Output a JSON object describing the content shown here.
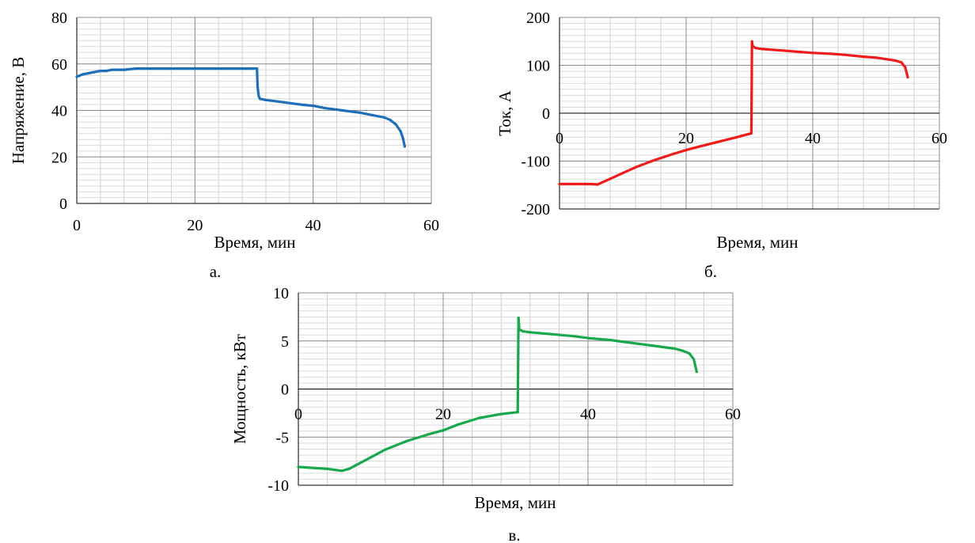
{
  "chart_data": [
    {
      "type": "line",
      "title": "",
      "xlabel": "Время, мин",
      "ylabel": "Напряжение, В",
      "caption": "а.",
      "xlim": [
        0,
        60
      ],
      "ylim": [
        0,
        80
      ],
      "x_ticks": [
        "0",
        "20",
        "40",
        "60"
      ],
      "y_ticks": [
        "0",
        "20",
        "40",
        "60",
        "80"
      ],
      "grid": true,
      "series": [
        {
          "color": "#1f6fb8",
          "x": [
            0,
            1,
            2,
            3,
            4,
            5,
            6,
            8,
            10,
            12,
            15,
            18,
            20,
            22,
            25,
            28,
            30.5,
            30.6,
            30.8,
            31,
            32,
            35,
            38,
            40,
            42,
            45,
            48,
            50,
            52,
            53,
            54,
            54.8,
            55.2,
            55.5
          ],
          "y": [
            54.5,
            55.5,
            56,
            56.5,
            57,
            57,
            57.5,
            57.5,
            58,
            58,
            58,
            58,
            58,
            58,
            58,
            58,
            58,
            50,
            46,
            45,
            44.5,
            43.5,
            42.5,
            42,
            41,
            40,
            39,
            38,
            37,
            36,
            34,
            31,
            28,
            24.5
          ]
        }
      ]
    },
    {
      "type": "line",
      "title": "",
      "xlabel": "Время, мин",
      "ylabel": "Ток, А",
      "caption": "б.",
      "xlim": [
        0,
        60
      ],
      "ylim": [
        -200,
        200
      ],
      "x_ticks": [
        "0",
        "20",
        "40",
        "60"
      ],
      "y_ticks": [
        "-200",
        "-100",
        "0",
        "100",
        "200"
      ],
      "grid": true,
      "series": [
        {
          "color": "#ee1c1c",
          "x": [
            0,
            2,
            4,
            5,
            6,
            8,
            10,
            12,
            15,
            18,
            20,
            22,
            25,
            28,
            30.3,
            30.4,
            30.5,
            31,
            32,
            35,
            38,
            40,
            43,
            45,
            48,
            50,
            52,
            53,
            54,
            54.6,
            55
          ],
          "y": [
            -148,
            -148,
            -148,
            -148,
            -149,
            -137,
            -125,
            -113,
            -98,
            -85,
            -77,
            -70,
            -60,
            -50,
            -42,
            150,
            140,
            136,
            134,
            131,
            128,
            126,
            124,
            122,
            118,
            116,
            112,
            110,
            106,
            96,
            75
          ]
        }
      ]
    },
    {
      "type": "line",
      "title": "",
      "xlabel": "Время, мин",
      "ylabel": "Мощность, кВт",
      "caption": "в.",
      "xlim": [
        0,
        60
      ],
      "ylim": [
        -10,
        10
      ],
      "x_ticks": [
        "0",
        "20",
        "40",
        "60"
      ],
      "y_ticks": [
        "-10",
        "-5",
        "0",
        "5",
        "10"
      ],
      "grid": true,
      "series": [
        {
          "color": "#19a84b",
          "x": [
            0,
            2,
            4,
            5,
            6,
            7,
            8,
            10,
            12,
            15,
            18,
            20,
            22,
            25,
            28,
            30.3,
            30.4,
            30.5,
            31,
            32,
            35,
            38,
            40,
            43,
            45,
            48,
            50,
            52,
            53,
            54,
            54.6,
            55
          ],
          "y": [
            -8.1,
            -8.2,
            -8.3,
            -8.4,
            -8.5,
            -8.3,
            -7.9,
            -7.1,
            -6.3,
            -5.4,
            -4.7,
            -4.3,
            -3.7,
            -3.0,
            -2.6,
            -2.4,
            7.4,
            6.2,
            6.0,
            5.9,
            5.7,
            5.5,
            5.3,
            5.1,
            4.9,
            4.6,
            4.4,
            4.2,
            4.0,
            3.7,
            3.1,
            1.8
          ]
        }
      ]
    }
  ]
}
